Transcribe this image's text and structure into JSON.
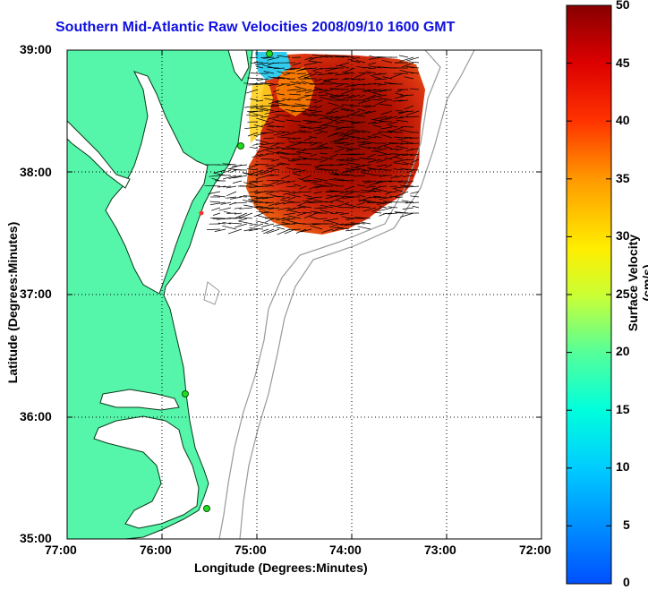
{
  "title": "Southern Mid-Atlantic Raw Velocities 2008/09/10 1600 GMT",
  "xlabel": "Longitude (Degrees:Minutes)",
  "ylabel": "Latitude (Degrees:Minutes)",
  "x_ticks": [
    "77:00",
    "76:00",
    "75:00",
    "74:00",
    "73:00",
    "72:00"
  ],
  "y_ticks": [
    "39:00",
    "38:00",
    "37:00",
    "36:00",
    "35:00"
  ],
  "colorbar": {
    "label": "Surface Velocity (cm/s)",
    "ticks": [
      "50",
      "45",
      "40",
      "35",
      "30",
      "25",
      "20",
      "15",
      "10",
      "5",
      "0"
    ]
  },
  "colors": {
    "land": "#55f5aa",
    "water": "#ffffff",
    "title": "#1010e0",
    "station": "#22dd22",
    "isobath": "#999999"
  }
}
